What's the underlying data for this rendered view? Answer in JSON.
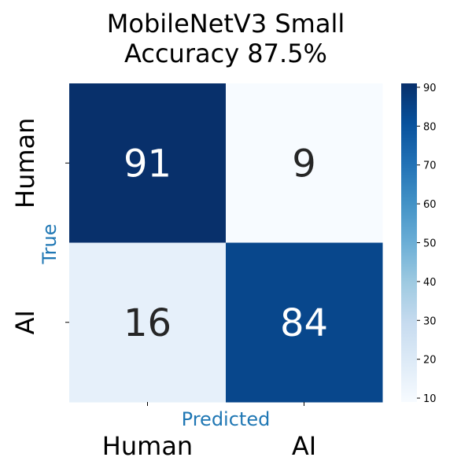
{
  "chart_data": {
    "type": "heatmap",
    "title": [
      "MobileNetV3 Small",
      "Accuracy 87.5%"
    ],
    "xlabel": "Predicted",
    "ylabel": "True",
    "x_categories": [
      "Human",
      "AI"
    ],
    "y_categories": [
      "Human",
      "AI"
    ],
    "values": [
      [
        91,
        9
      ],
      [
        16,
        84
      ]
    ],
    "colormap": "Blues",
    "colorbar": {
      "min": 9,
      "max": 91,
      "ticks": [
        "10",
        "20",
        "30",
        "40",
        "50",
        "60",
        "70",
        "80",
        "90"
      ]
    },
    "label_color": "#1f77b4",
    "grid": false,
    "legend": "colorbar-right"
  }
}
